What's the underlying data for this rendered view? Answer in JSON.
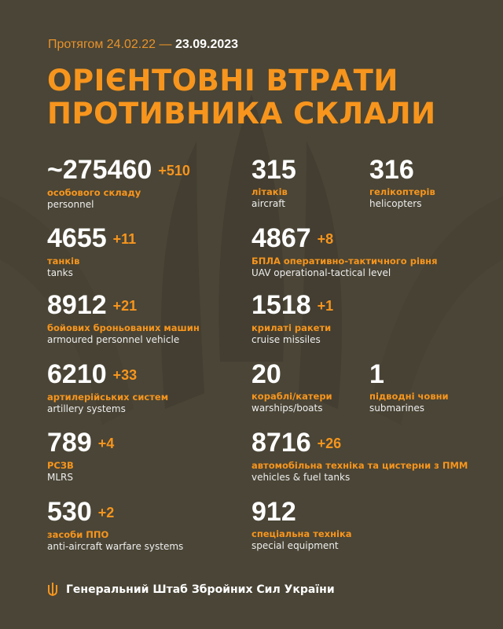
{
  "header": {
    "period_prefix": "Протягом 24.02.22 —",
    "period_date": "23.09.2023",
    "title_line1": "ОРІЄНТОВНІ ВТРАТИ",
    "title_line2": "ПРОТИВНИКА СКЛАЛИ"
  },
  "stats": [
    {
      "value": "~275460",
      "delta": "+510",
      "ua": "особового складу",
      "en": "personnel"
    },
    {
      "value": "315",
      "delta": "",
      "ua": "літаків",
      "en": "aircraft"
    },
    {
      "value": "316",
      "delta": "",
      "ua": "гелікоптерів",
      "en": "helicopters"
    },
    {
      "value": "4655",
      "delta": "+11",
      "ua": "танків",
      "en": "tanks"
    },
    {
      "value": "4867",
      "delta": "+8",
      "ua": "БПЛА оперативно-тактичного рівня",
      "en": "UAV operational-tactical level"
    },
    {
      "value": "8912",
      "delta": "+21",
      "ua": "бойових броньованих машин",
      "en": "armoured personnel vehicle"
    },
    {
      "value": "1518",
      "delta": "+1",
      "ua": "крилаті ракети",
      "en": "cruise missiles"
    },
    {
      "value": "6210",
      "delta": "+33",
      "ua": "артилерійських систем",
      "en": "artillery systems"
    },
    {
      "value": "20",
      "delta": "",
      "ua": "кораблі/катери",
      "en": "warships/boats"
    },
    {
      "value": "1",
      "delta": "",
      "ua": "підводні човни",
      "en": "submarines"
    },
    {
      "value": "789",
      "delta": "+4",
      "ua": "РСЗВ",
      "en": "MLRS"
    },
    {
      "value": "8716",
      "delta": "+26",
      "ua": "автомобільна техніка та цистерни з ПММ",
      "en": "vehicles & fuel tanks"
    },
    {
      "value": "530",
      "delta": "+2",
      "ua": "засоби ППО",
      "en": "anti-aircraft warfare systems"
    },
    {
      "value": "912",
      "delta": "",
      "ua": "спеціальна техніка",
      "en": "special equipment"
    }
  ],
  "footer": {
    "label": "Генеральний Штаб Збройних Сил України",
    "icon": "trident-icon"
  },
  "colors": {
    "background": "#4a4536",
    "accent": "#f7951d",
    "text": "#ffffff"
  }
}
